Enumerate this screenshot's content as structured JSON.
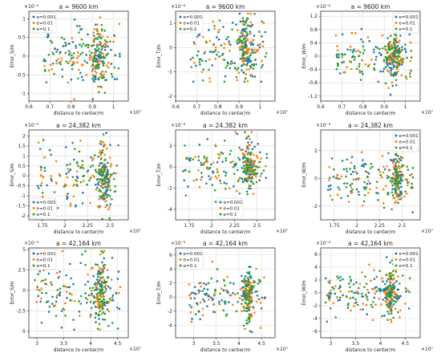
{
  "colors": {
    "e0001": "#1f77b4",
    "e001": "#ff7f0e",
    "e01": "#2ca02c",
    "grid": "#d9d9d9",
    "axis": "#333333"
  },
  "chart_data": [
    {
      "type": "scatter",
      "title": "a = 9600 km",
      "xlabel": "distance to center/m",
      "ylabel": "Error_S/m",
      "x_exponent": "×10⁷",
      "y_exponent": "×10⁻⁵",
      "xlim": [
        0.6,
        1.07
      ],
      "ylim": [
        -1.2,
        1.2
      ],
      "xticks": [
        0.6,
        0.7,
        0.8,
        0.9,
        1.0
      ],
      "xtick_labels": [
        "0.6",
        "0.7",
        "0.8",
        "0.9",
        "1"
      ],
      "yticks": [
        -1,
        -0.5,
        0,
        0.5,
        1
      ],
      "ytick_labels": [
        "-1",
        "-0.5",
        "0",
        "0.5",
        "1"
      ],
      "grid": true,
      "legend_position": "top-left",
      "x_range": [
        0.67,
        1.03
      ],
      "x_cluster": [
        0.93,
        0.02
      ],
      "y_spread": 0.4,
      "y_max": 1.15,
      "series": [
        {
          "name": "e=0.001",
          "n": 90
        },
        {
          "name": "e=0.01",
          "n": 90
        },
        {
          "name": "e=0.1",
          "n": 110
        }
      ]
    },
    {
      "type": "scatter",
      "title": "a = 9600 km",
      "xlabel": "distance to center/m",
      "ylabel": "Error_T/m",
      "x_exponent": "×10⁷",
      "y_exponent": "×10⁻⁶",
      "xlim": [
        0.6,
        1.07
      ],
      "ylim": [
        -2.2,
        1.5
      ],
      "xticks": [
        0.6,
        0.7,
        0.8,
        0.9,
        1.0
      ],
      "xtick_labels": [
        "0.6",
        "0.7",
        "0.8",
        "0.9",
        "1"
      ],
      "yticks": [
        -2,
        -1,
        0,
        1
      ],
      "ytick_labels": [
        "-2",
        "-1",
        "0",
        "1"
      ],
      "grid": true,
      "legend_position": "top-left",
      "x_range": [
        0.67,
        1.03
      ],
      "x_cluster": [
        0.93,
        0.02
      ],
      "y_spread": 0.7,
      "y_max": 1.4,
      "series": [
        {
          "name": "e=0.001",
          "n": 90
        },
        {
          "name": "e=0.01",
          "n": 90
        },
        {
          "name": "e=0.1",
          "n": 110
        }
      ]
    },
    {
      "type": "scatter",
      "title": "a = 9600 km",
      "xlabel": "distance to center/m",
      "ylabel": "Error_W/m",
      "x_exponent": "×10⁷",
      "y_exponent": "×10⁻⁶",
      "xlim": [
        0.6,
        1.07
      ],
      "ylim": [
        -1.35,
        1.35
      ],
      "xticks": [
        0.6,
        0.7,
        0.8,
        0.9,
        1.0
      ],
      "xtick_labels": [
        "0.6",
        "0.7",
        "0.8",
        "0.9",
        "1"
      ],
      "yticks": [
        -1.2,
        -0.8,
        -0.4,
        0,
        0.4,
        0.8,
        1.2
      ],
      "ytick_labels": [
        "-1.2",
        "-0.8",
        "-0.4",
        "0",
        "0.4",
        "0.8",
        "1.2"
      ],
      "grid": true,
      "legend_position": "top-right",
      "x_range": [
        0.67,
        1.03
      ],
      "x_cluster": [
        0.95,
        0.02
      ],
      "y_spread": 0.35,
      "y_max": 1.25,
      "series": [
        {
          "name": "e=0.001",
          "n": 90
        },
        {
          "name": "e=0.01",
          "n": 90
        },
        {
          "name": "e=0.1",
          "n": 110
        }
      ]
    },
    {
      "type": "scatter",
      "title": "a = 24,382 km",
      "xlabel": "distance to center/m",
      "ylabel": "Error_S/m",
      "x_exponent": "×10⁷",
      "y_exponent": "×10⁻⁵",
      "xlim": [
        1.6,
        2.7
      ],
      "ylim": [
        -2.2,
        2.3
      ],
      "xticks": [
        1.75,
        2,
        2.25,
        2.5
      ],
      "xtick_labels": [
        "1.75",
        "2",
        "2.25",
        "2.5"
      ],
      "yticks": [
        -2,
        -1.5,
        -1,
        -0.5,
        0,
        0.5,
        1,
        1.5,
        2
      ],
      "ytick_labels": [
        "-2",
        "-1.5",
        "-1",
        "-0.5",
        "0",
        "0.5",
        "1",
        "1.5",
        "2"
      ],
      "grid": true,
      "legend_position": "bottom-left",
      "x_range": [
        1.68,
        2.62
      ],
      "x_cluster": [
        2.42,
        0.04
      ],
      "y_spread": 0.8,
      "y_max": 2.15,
      "series": [
        {
          "name": "e=0.001",
          "n": 90
        },
        {
          "name": "e=0.01",
          "n": 90
        },
        {
          "name": "e=0.1",
          "n": 110
        }
      ]
    },
    {
      "type": "scatter",
      "title": "a = 24,382 km",
      "xlabel": "distance to center/m",
      "ylabel": "Error_T/m",
      "x_exponent": "×10⁷",
      "y_exponent": "×10⁻⁶",
      "xlim": [
        1.6,
        2.7
      ],
      "ylim": [
        -5,
        3.5
      ],
      "xticks": [
        1.75,
        2,
        2.25,
        2.5
      ],
      "xtick_labels": [
        "1.75",
        "2",
        "2.25",
        "2.5"
      ],
      "yticks": [
        -4,
        -2,
        0,
        2
      ],
      "ytick_labels": [
        "-4",
        "-2",
        "0",
        "2"
      ],
      "grid": true,
      "legend_position": "bottom-center",
      "x_range": [
        1.68,
        2.62
      ],
      "x_cluster": [
        2.42,
        0.04
      ],
      "y_spread": 1.2,
      "y_max": 3.3,
      "series": [
        {
          "name": "e=0.001",
          "n": 90
        },
        {
          "name": "e=0.01",
          "n": 90
        },
        {
          "name": "e=0.1",
          "n": 110
        }
      ]
    },
    {
      "type": "scatter",
      "title": "a = 24,382 km",
      "xlabel": "distance to center/m",
      "ylabel": "Error_W/m",
      "x_exponent": "×10⁷",
      "y_exponent": "×10⁻⁶",
      "xlim": [
        1.6,
        2.7
      ],
      "ylim": [
        -3,
        3.5
      ],
      "xticks": [
        1.75,
        2,
        2.25,
        2.5
      ],
      "xtick_labels": [
        "1.75",
        "2",
        "2.25",
        "2.5"
      ],
      "yticks": [
        -2,
        0,
        2
      ],
      "ytick_labels": [
        "-2",
        "0",
        "2"
      ],
      "grid": true,
      "legend_position": "top-right",
      "x_range": [
        1.68,
        2.62
      ],
      "x_cluster": [
        2.44,
        0.04
      ],
      "y_spread": 0.9,
      "y_max": 3.0,
      "series": [
        {
          "name": "e=0.001",
          "n": 90
        },
        {
          "name": "e=0.01",
          "n": 90
        },
        {
          "name": "e=0.1",
          "n": 110
        }
      ]
    },
    {
      "type": "scatter",
      "title": "a = 42,164 km",
      "xlabel": "distance to center/m",
      "ylabel": "Error_S/m",
      "x_exponent": "×10⁷",
      "y_exponent": "×10⁻⁵",
      "xlim": [
        2.85,
        4.7
      ],
      "ylim": [
        -5.8,
        5.2
      ],
      "xticks": [
        3,
        3.5,
        4,
        4.5
      ],
      "xtick_labels": [
        "3",
        "3.5",
        "4",
        "4.5"
      ],
      "yticks": [
        -5,
        -2.5,
        0,
        2.5,
        5
      ],
      "ytick_labels": [
        "-5",
        "-2.5",
        "0",
        "2.5",
        "5"
      ],
      "grid": true,
      "legend_position": "top-left",
      "x_range": [
        2.95,
        4.55
      ],
      "x_cluster": [
        4.18,
        0.06
      ],
      "y_spread": 2.0,
      "y_max": 4.8,
      "series": [
        {
          "name": "e=0.001",
          "n": 90
        },
        {
          "name": "e=0.01",
          "n": 90
        },
        {
          "name": "e=0.1",
          "n": 110
        }
      ]
    },
    {
      "type": "scatter",
      "title": "a = 42,164 km",
      "xlabel": "distance to center/m",
      "ylabel": "Error_T/m",
      "x_exponent": "×10⁷",
      "y_exponent": "×10⁻⁶",
      "xlim": [
        2.6,
        4.8
      ],
      "ylim": [
        -5.8,
        7
      ],
      "xticks": [
        3,
        3.5,
        4,
        4.5
      ],
      "xtick_labels": [
        "3",
        "3.5",
        "4",
        "4.5"
      ],
      "yticks": [
        -4,
        -2,
        0,
        2,
        4,
        6
      ],
      "ytick_labels": [
        "-4",
        "-2",
        "0",
        "2",
        "4",
        "6"
      ],
      "grid": true,
      "legend_position": "top-left",
      "x_range": [
        2.9,
        4.6
      ],
      "x_cluster": [
        4.2,
        0.06
      ],
      "y_spread": 1.8,
      "y_max": 6.2,
      "series": [
        {
          "name": "e=0.001",
          "n": 90
        },
        {
          "name": "e=0.01",
          "n": 90
        },
        {
          "name": "e=0.1",
          "n": 110
        }
      ]
    },
    {
      "type": "scatter",
      "title": "a = 42,164 km",
      "xlabel": "distance to center/m",
      "ylabel": "Error_W/m",
      "x_exponent": "×10⁷",
      "y_exponent": "×10⁻⁶",
      "xlim": [
        2.8,
        4.8
      ],
      "ylim": [
        -7,
        7
      ],
      "xticks": [
        3,
        3.5,
        4,
        4.5
      ],
      "xtick_labels": [
        "3",
        "3.5",
        "4",
        "4.5"
      ],
      "yticks": [
        -6,
        -4,
        -2,
        0,
        2,
        4,
        6
      ],
      "ytick_labels": [
        "-6",
        "-4",
        "-2",
        "0",
        "2",
        "4",
        "6"
      ],
      "grid": true,
      "legend_position": "top-right",
      "x_range": [
        2.9,
        4.6
      ],
      "x_cluster": [
        4.2,
        0.06
      ],
      "y_spread": 1.8,
      "y_max": 6.5,
      "series": [
        {
          "name": "e=0.001",
          "n": 90
        },
        {
          "name": "e=0.01",
          "n": 90
        },
        {
          "name": "e=0.1",
          "n": 110
        }
      ]
    }
  ]
}
